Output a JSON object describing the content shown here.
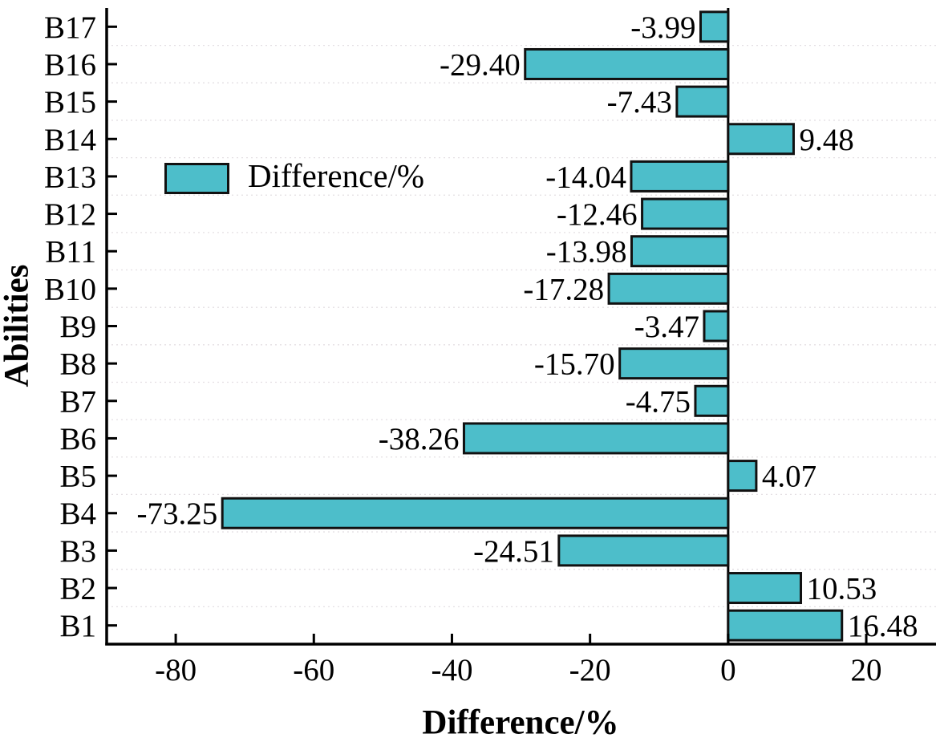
{
  "chart_data": {
    "type": "bar",
    "orientation": "horizontal",
    "title": "",
    "xlabel": "Difference/%",
    "ylabel": "Abilities",
    "legend_label": "Difference/%",
    "legend_position": "inside upper-left area of plot",
    "categories": [
      "B1",
      "B2",
      "B3",
      "B4",
      "B5",
      "B6",
      "B7",
      "B8",
      "B9",
      "B10",
      "B11",
      "B12",
      "B13",
      "B14",
      "B15",
      "B16",
      "B17"
    ],
    "values": [
      16.48,
      10.53,
      -24.51,
      -73.25,
      4.07,
      -38.26,
      -4.75,
      -15.7,
      -3.47,
      -17.28,
      -13.98,
      -12.46,
      -14.04,
      9.48,
      -7.43,
      -29.4,
      -3.99
    ],
    "value_labels": [
      "16.48",
      "10.53",
      "-24.51",
      "-73.25",
      "4.07",
      "-38.26",
      "-4.75",
      "-15.70",
      "-3.47",
      "-17.28",
      "-13.98",
      "-12.46",
      "-14.04",
      "9.48",
      "-7.43",
      "-29.40",
      "-3.99"
    ],
    "x_ticks": [
      -80,
      -60,
      -40,
      -20,
      0,
      20
    ],
    "x_tick_labels": [
      "-80",
      "-60",
      "-40",
      "-20",
      "0",
      "20"
    ],
    "xlim": [
      -90,
      30.1
    ],
    "grid": "horizontal dashed lines at category boundaries",
    "style": {
      "bar_fill": "#4DBECA",
      "bar_edge": "#111111",
      "axis_color": "#000000",
      "grid_color": "#E4DFE3",
      "text_color": "#000000",
      "background": "#FFFFFF"
    }
  }
}
